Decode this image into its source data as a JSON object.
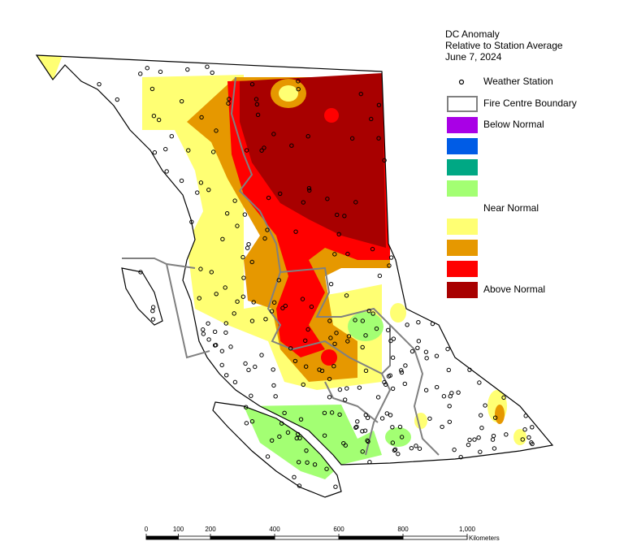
{
  "legend": {
    "title": [
      "DC Anomaly",
      "Relative to Station Average",
      "June 7, 2024"
    ],
    "items": [
      {
        "label": "Weather Station"
      },
      {
        "label": "Fire Centre Boundary"
      },
      {
        "label": "Below Normal",
        "color": "#a900e6"
      },
      {
        "color": "#005ce6"
      },
      {
        "color": "#00a884"
      },
      {
        "color": "#a3ff73"
      },
      {
        "label": "Near Normal",
        "color": "#ffffff"
      },
      {
        "color": "#ffff73"
      },
      {
        "color": "#e69800"
      },
      {
        "color": "#ff0000"
      },
      {
        "label": "Above Normal",
        "color": "#a80000"
      }
    ]
  },
  "scale": {
    "ticks": [
      0,
      100,
      200,
      400,
      600,
      800,
      {
        "value": 1000,
        "label": "1,000"
      }
    ],
    "unit": "Kilometers"
  }
}
